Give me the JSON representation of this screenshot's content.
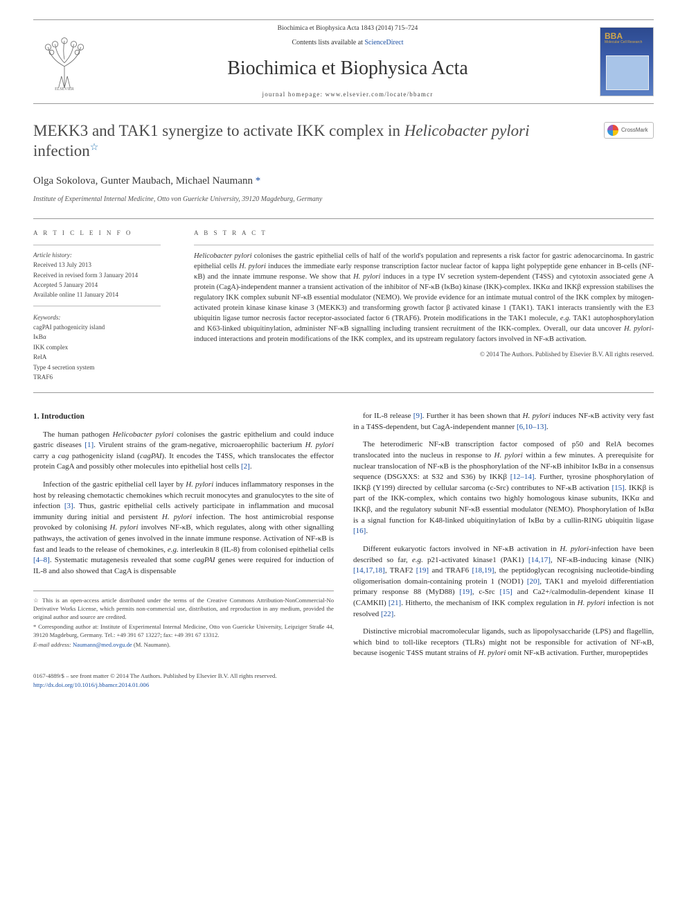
{
  "header": {
    "journal_meta": "Biochimica et Biophysica Acta 1843 (2014) 715–724",
    "contents_line_pre": "Contents lists available at ",
    "contents_line_link": "ScienceDirect",
    "journal_title": "Biochimica et Biophysica Acta",
    "homepage_label": "journal homepage: www.elsevier.com/locate/bbamcr"
  },
  "crossmark": {
    "label": "CrossMark"
  },
  "title": {
    "main": "MEKK3 and TAK1 synergize to activate IKK complex in Helicobacter pylori infection",
    "title_part1": "MEKK3 and TAK1 synergize to activate IKK complex in ",
    "title_em": "Helicobacter pylori",
    "title_part2": " infection",
    "star": "☆"
  },
  "authors": {
    "line": "Olga Sokolova, Gunter Maubach, Michael Naumann ",
    "corr_mark": "*"
  },
  "affiliation": "Institute of Experimental Internal Medicine, Otto von Guericke University, 39120 Magdeburg, Germany",
  "info": {
    "label": "a r t i c l e    i n f o",
    "history_label": "Article history:",
    "received": "Received 13 July 2013",
    "revised": "Received in revised form 3 January 2014",
    "accepted": "Accepted 5 January 2014",
    "online": "Available online 11 January 2014",
    "keywords_label": "Keywords:",
    "keywords": [
      "cagPAI pathogenicity island",
      "IκBα",
      "IKK complex",
      "RelA",
      "Type 4 secretion system",
      "TRAF6"
    ]
  },
  "abstract": {
    "label": "a b s t r a c t",
    "text": "Helicobacter pylori colonises the gastric epithelial cells of half of the world's population and represents a risk factor for gastric adenocarcinoma. In gastric epithelial cells H. pylori induces the immediate early response transcription factor nuclear factor of kappa light polypeptide gene enhancer in B-cells (NF-κB) and the innate immune response. We show that H. pylori induces in a type IV secretion system-dependent (T4SS) and cytotoxin associated gene A protein (CagA)-independent manner a transient activation of the inhibitor of NF-κB (IκBα) kinase (IKK)-complex. IKKα and IKKβ expression stabilises the regulatory IKK complex subunit NF-κB essential modulator (NEMO). We provide evidence for an intimate mutual control of the IKK complex by mitogen-activated protein kinase kinase kinase 3 (MEKK3) and transforming growth factor β activated kinase 1 (TAK1). TAK1 interacts transiently with the E3 ubiquitin ligase tumor necrosis factor receptor-associated factor 6 (TRAF6). Protein modifications in the TAK1 molecule, e.g. TAK1 autophosphorylation and K63-linked ubiquitinylation, administer NF-κB signalling including transient recruitment of the IKK-complex. Overall, our data uncover H. pylori-induced interactions and protein modifications of the IKK complex, and its upstream regulatory factors involved in NF-κB activation.",
    "copyright": "© 2014 The Authors. Published by Elsevier B.V. All rights reserved."
  },
  "body": {
    "section_heading": "1. Introduction",
    "p1": "The human pathogen Helicobacter pylori colonises the gastric epithelium and could induce gastric diseases [1]. Virulent strains of the gram-negative, microaerophilic bacterium H. pylori carry a cag pathogenicity island (cagPAI). It encodes the T4SS, which translocates the effector protein CagA and possibly other molecules into epithelial host cells [2].",
    "p2": "Infection of the gastric epithelial cell layer by H. pylori induces inflammatory responses in the host by releasing chemotactic chemokines which recruit monocytes and granulocytes to the site of infection [3]. Thus, gastric epithelial cells actively participate in inflammation and mucosal immunity during initial and persistent H. pylori infection. The host antimicrobial response provoked by colonising H. pylori involves NF-κB, which regulates, along with other signalling pathways, the activation of genes involved in the innate immune response. Activation of NF-κB is fast and leads to the release of chemokines, e.g. interleukin 8 (IL-8) from colonised epithelial cells [4–8]. Systematic mutagenesis revealed that some cagPAI genes were required for induction of IL-8 and also showed that CagA is dispensable",
    "p3": "for IL-8 release [9]. Further it has been shown that H. pylori induces NF-κB activity very fast in a T4SS-dependent, but CagA-independent manner [6,10–13].",
    "p4": "The heterodimeric NF-κB transcription factor composed of p50 and RelA becomes translocated into the nucleus in response to H. pylori within a few minutes. A prerequisite for nuclear translocation of NF-κB is the phosphorylation of the NF-κB inhibitor IκBα in a consensus sequence (DSGXXS: at S32 and S36) by IKKβ [12–14]. Further, tyrosine phosphorylation of IKKβ (Y199) directed by cellular sarcoma (c-Src) contributes to NF-κB activation [15]. IKKβ is part of the IKK-complex, which contains two highly homologous kinase subunits, IKKα and IKKβ, and the regulatory subunit NF-κB essential modulator (NEMO). Phosphorylation of IκBα is a signal function for K48-linked ubiquitinylation of IκBα by a cullin-RING ubiquitin ligase [16].",
    "p5": "Different eukaryotic factors involved in NF-κB activation in H. pylori-infection have been described so far, e.g. p21-activated kinase1 (PAK1) [14,17], NF-κB-inducing kinase (NIK) [14,17,18], TRAF2 [19] and TRAF6 [18,19], the peptidoglycan recognising nucleotide-binding oligomerisation domain-containing protein 1 (NOD1) [20], TAK1 and myeloid differentiation primary response 88 (MyD88) [19], c-Src [15] and Ca2+/calmodulin-dependent kinase II (CAMKII) [21]. Hitherto, the mechanism of IKK complex regulation in H. pylori infection is not resolved [22].",
    "p6": "Distinctive microbial macromolecular ligands, such as lipopolysaccharide (LPS) and flagellin, which bind to toll-like receptors (TLRs) might not be responsible for activation of NF-κB, because isogenic T4SS mutant strains of H. pylori omit NF-κB activation. Further, muropeptides"
  },
  "footnotes": {
    "star_note": "☆ This is an open-access article distributed under the terms of the Creative Commons Attribution-NonCommercial-No Derivative Works License, which permits non-commercial use, distribution, and reproduction in any medium, provided the original author and source are credited.",
    "corr_note": "* Corresponding author at: Institute of Experimental Internal Medicine, Otto von Guericke University, Leipziger Straße 44, 39120 Magdeburg, Germany. Tel.: +49 391 67 13227; fax: +49 391 67 13312.",
    "email_label": "E-mail address: ",
    "email": "Naumann@med.ovgu.de",
    "email_suffix": " (M. Naumann)."
  },
  "bottom": {
    "issn": "0167-4889/$ – see front matter © 2014 The Authors. Published by Elsevier B.V. All rights reserved.",
    "doi": "http://dx.doi.org/10.1016/j.bbamcr.2014.01.006"
  },
  "colors": {
    "link": "#1a4fa3",
    "rule": "#999999",
    "text": "#2b2b2b",
    "muted": "#555555"
  }
}
